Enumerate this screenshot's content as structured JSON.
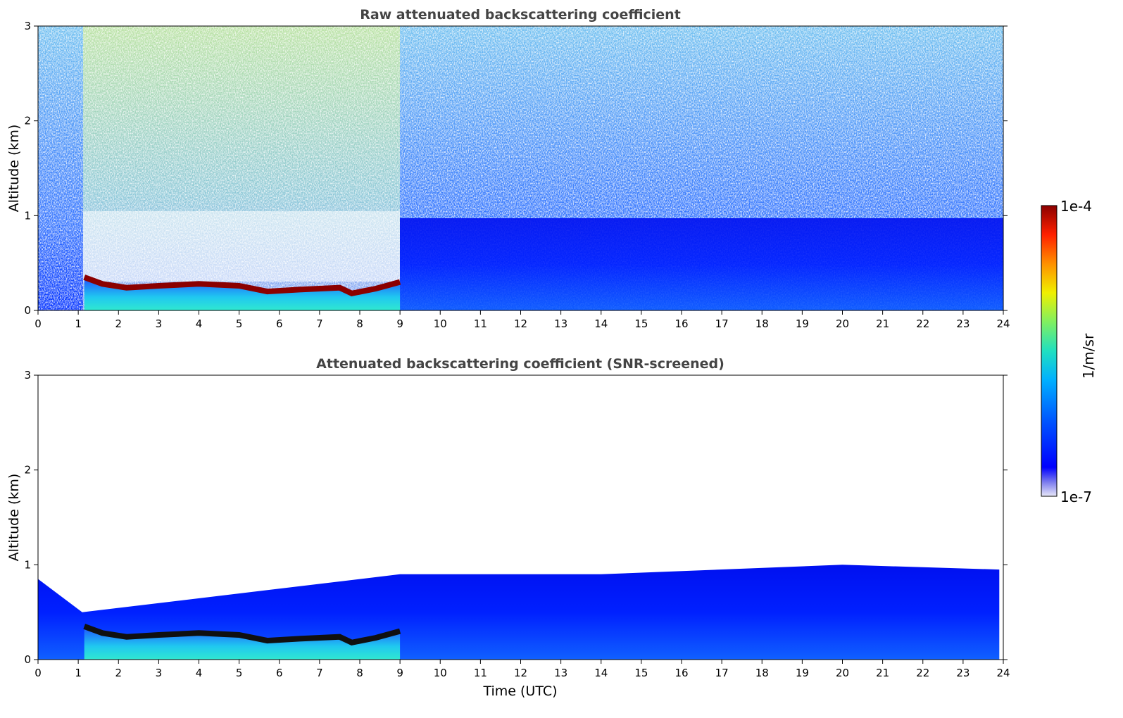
{
  "chart_data": [
    {
      "type": "heatmap",
      "title": "Raw attenuated backscattering coefficient",
      "xlabel": "",
      "ylabel": "Altitude (km)",
      "xlim": [
        0,
        24
      ],
      "ylim": [
        0,
        3
      ],
      "xticks": [
        "0",
        "1",
        "2",
        "3",
        "4",
        "5",
        "6",
        "7",
        "8",
        "9",
        "10",
        "11",
        "12",
        "13",
        "14",
        "15",
        "16",
        "17",
        "18",
        "19",
        "20",
        "21",
        "22",
        "23",
        "24"
      ],
      "yticks": [
        "0",
        "1",
        "2",
        "3"
      ],
      "layer_top_km": [
        [
          1.15,
          0.35
        ],
        [
          1.6,
          0.28
        ],
        [
          2.2,
          0.24
        ],
        [
          3.0,
          0.26
        ],
        [
          4.0,
          0.28
        ],
        [
          5.0,
          0.26
        ],
        [
          5.7,
          0.2
        ],
        [
          6.5,
          0.22
        ],
        [
          7.5,
          0.24
        ],
        [
          7.8,
          0.18
        ],
        [
          8.4,
          0.23
        ],
        [
          9.0,
          0.3
        ]
      ],
      "noise_boundary_km": 0.5
    },
    {
      "type": "heatmap",
      "title": "Attenuated backscattering coefficient (SNR-screened)",
      "xlabel": "Time (UTC)",
      "ylabel": "Altitude (km)",
      "xlim": [
        0,
        24
      ],
      "ylim": [
        0,
        3
      ],
      "xticks": [
        "0",
        "1",
        "2",
        "3",
        "4",
        "5",
        "6",
        "7",
        "8",
        "9",
        "10",
        "11",
        "12",
        "13",
        "14",
        "15",
        "16",
        "17",
        "18",
        "19",
        "20",
        "21",
        "22",
        "23",
        "24"
      ],
      "yticks": [
        "0",
        "1",
        "2",
        "3"
      ],
      "layer_top_km": [
        [
          1.15,
          0.35
        ],
        [
          1.6,
          0.28
        ],
        [
          2.2,
          0.24
        ],
        [
          3.0,
          0.26
        ],
        [
          4.0,
          0.28
        ],
        [
          5.0,
          0.26
        ],
        [
          5.7,
          0.2
        ],
        [
          6.5,
          0.22
        ],
        [
          7.5,
          0.24
        ],
        [
          7.8,
          0.18
        ],
        [
          8.4,
          0.23
        ],
        [
          9.0,
          0.3
        ]
      ],
      "signal_top_km": [
        [
          0,
          0.85
        ],
        [
          1.1,
          0.5
        ],
        [
          9.0,
          0.9
        ],
        [
          14,
          0.9
        ],
        [
          20,
          1.0
        ],
        [
          23.9,
          0.95
        ]
      ]
    }
  ],
  "colorbar": {
    "label": "1/m/sr",
    "max_label": "1e-4",
    "min_label": "1e-7",
    "colors": [
      "#e8e8f8",
      "#7878ee",
      "#0000ff",
      "#0050ff",
      "#00b0ff",
      "#20e0c0",
      "#80f060",
      "#f0f000",
      "#ff9000",
      "#ff2000",
      "#8b0000"
    ]
  }
}
